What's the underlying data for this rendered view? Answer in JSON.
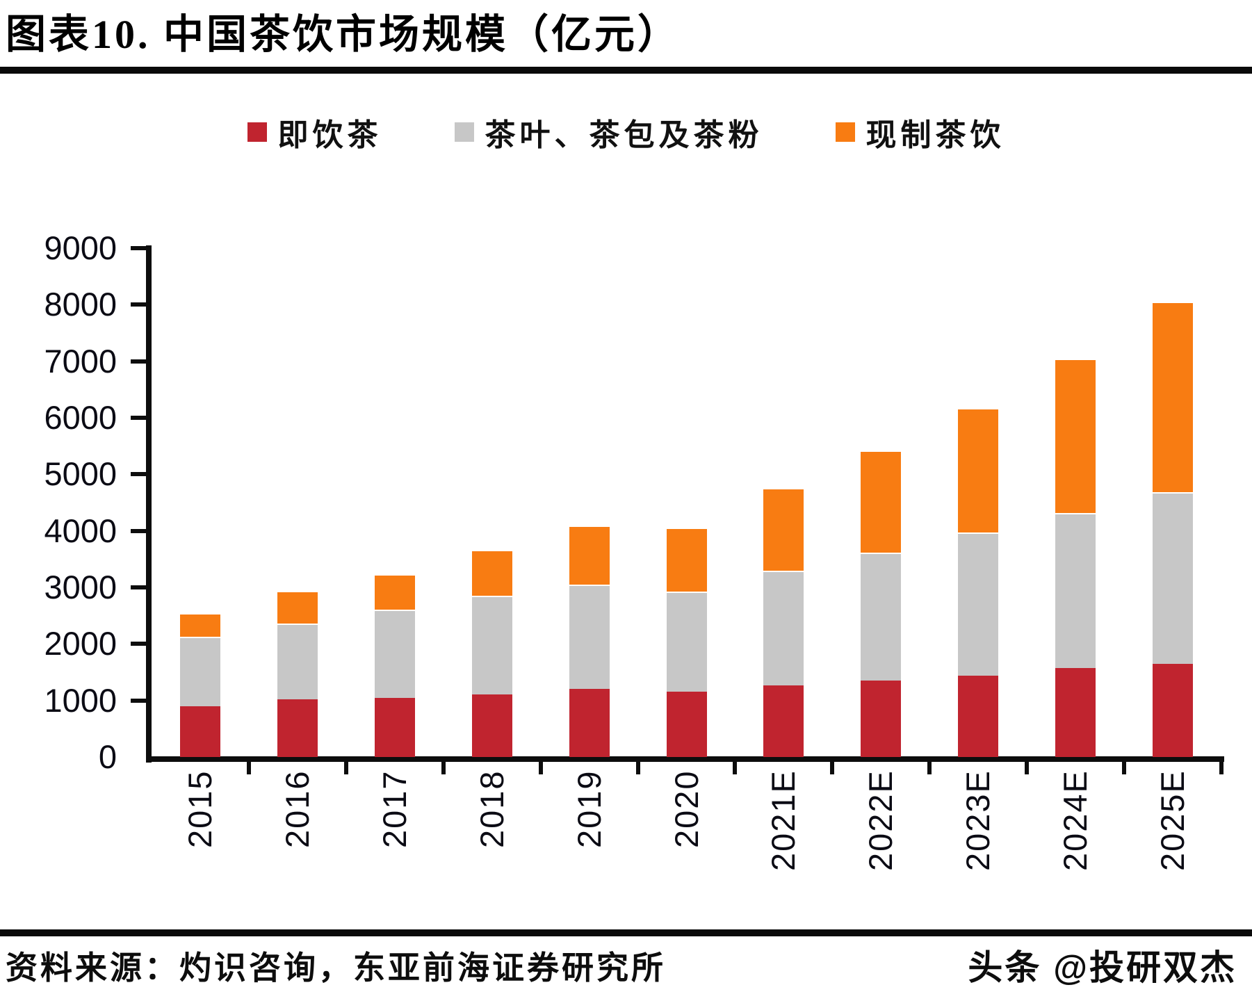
{
  "header": {
    "title": "图表10.  中国茶饮市场规模（亿元）"
  },
  "legend": [
    {
      "label": "即饮茶",
      "color": "#c0242f"
    },
    {
      "label": "茶叶、茶包及茶粉",
      "color": "#c7c7c7"
    },
    {
      "label": "现制茶饮",
      "color": "#f87c12"
    }
  ],
  "chart_data": {
    "type": "bar",
    "stacked": true,
    "title": "中国茶饮市场规模（亿元）",
    "categories": [
      "2015",
      "2016",
      "2017",
      "2018",
      "2019",
      "2020",
      "2021E",
      "2022E",
      "2023E",
      "2024E",
      "2025E"
    ],
    "series": [
      {
        "name": "即饮茶",
        "color": "#c0242f",
        "values": [
          900,
          1020,
          1040,
          1110,
          1210,
          1160,
          1270,
          1350,
          1440,
          1570,
          1650
        ]
      },
      {
        "name": "茶叶、茶包及茶粉",
        "color": "#c7c7c7",
        "values": [
          1230,
          1340,
          1570,
          1740,
          1840,
          1770,
          2020,
          2260,
          2530,
          2740,
          3030
        ]
      },
      {
        "name": "现制茶饮",
        "color": "#f87c12",
        "values": [
          410,
          580,
          620,
          810,
          1050,
          1130,
          1470,
          1810,
          2200,
          2730,
          3370
        ]
      }
    ],
    "totals": [
      2540,
      2940,
      3230,
      3660,
      4100,
      4060,
      4760,
      5420,
      6170,
      7040,
      8050
    ],
    "xlabel": "",
    "ylabel": "",
    "ylim": [
      0,
      9000
    ],
    "ytick_step": 1000,
    "grid": false,
    "legend_position": "top"
  },
  "footer": {
    "source": "资料来源：灼识咨询，东亚前海证券研究所",
    "watermark": "头条 @投研双杰"
  }
}
